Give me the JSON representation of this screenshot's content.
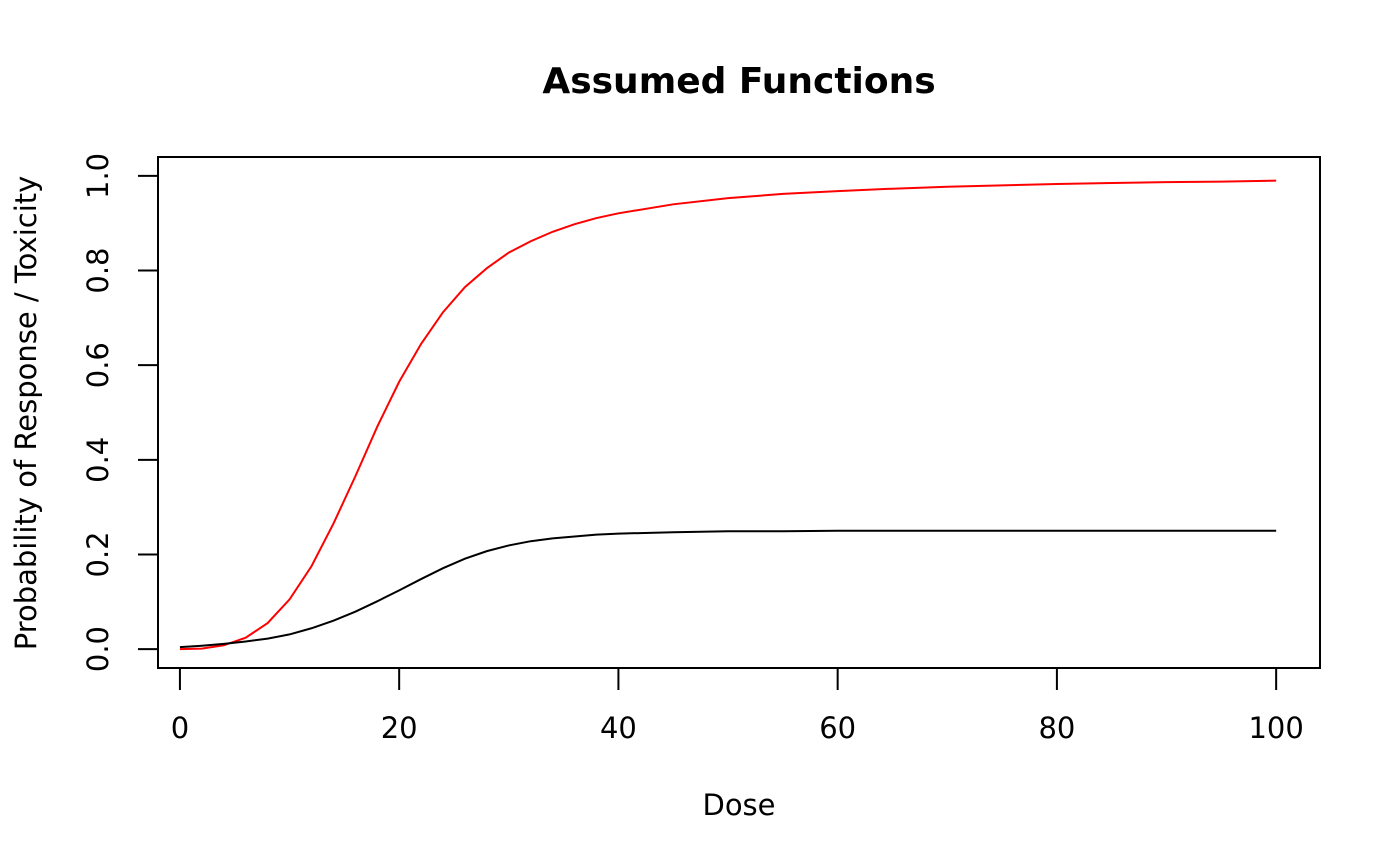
{
  "chart_data": {
    "type": "line",
    "title": "Assumed Functions",
    "xlabel": "Dose",
    "ylabel": "Probability of Response / Toxicity",
    "xlim": [
      -2,
      104
    ],
    "ylim": [
      -0.04,
      1.04
    ],
    "x_ticks": [
      "0",
      "20",
      "40",
      "60",
      "80",
      "100"
    ],
    "y_ticks": [
      "0.0",
      "0.2",
      "0.4",
      "0.6",
      "0.8",
      "1.0"
    ],
    "grid": false,
    "legend": "none",
    "x": [
      0,
      2,
      4,
      6,
      8,
      10,
      12,
      14,
      16,
      18,
      20,
      22,
      24,
      26,
      28,
      30,
      32,
      34,
      36,
      38,
      40,
      45,
      50,
      55,
      60,
      65,
      70,
      75,
      80,
      85,
      90,
      95,
      100
    ],
    "series": [
      {
        "color": "#ff0000",
        "values": [
          0.0,
          0.001,
          0.008,
          0.024,
          0.055,
          0.105,
          0.175,
          0.265,
          0.365,
          0.47,
          0.565,
          0.645,
          0.712,
          0.765,
          0.805,
          0.838,
          0.862,
          0.882,
          0.898,
          0.911,
          0.921,
          0.94,
          0.953,
          0.962,
          0.968,
          0.973,
          0.977,
          0.98,
          0.983,
          0.985,
          0.987,
          0.988,
          0.99
        ]
      },
      {
        "color": "#000000",
        "values": [
          0.004,
          0.007,
          0.011,
          0.016,
          0.022,
          0.031,
          0.044,
          0.06,
          0.079,
          0.101,
          0.124,
          0.148,
          0.171,
          0.191,
          0.207,
          0.219,
          0.228,
          0.234,
          0.238,
          0.242,
          0.244,
          0.247,
          0.249,
          0.249,
          0.25,
          0.25,
          0.25,
          0.25,
          0.25,
          0.25,
          0.25,
          0.25,
          0.25
        ]
      }
    ]
  }
}
